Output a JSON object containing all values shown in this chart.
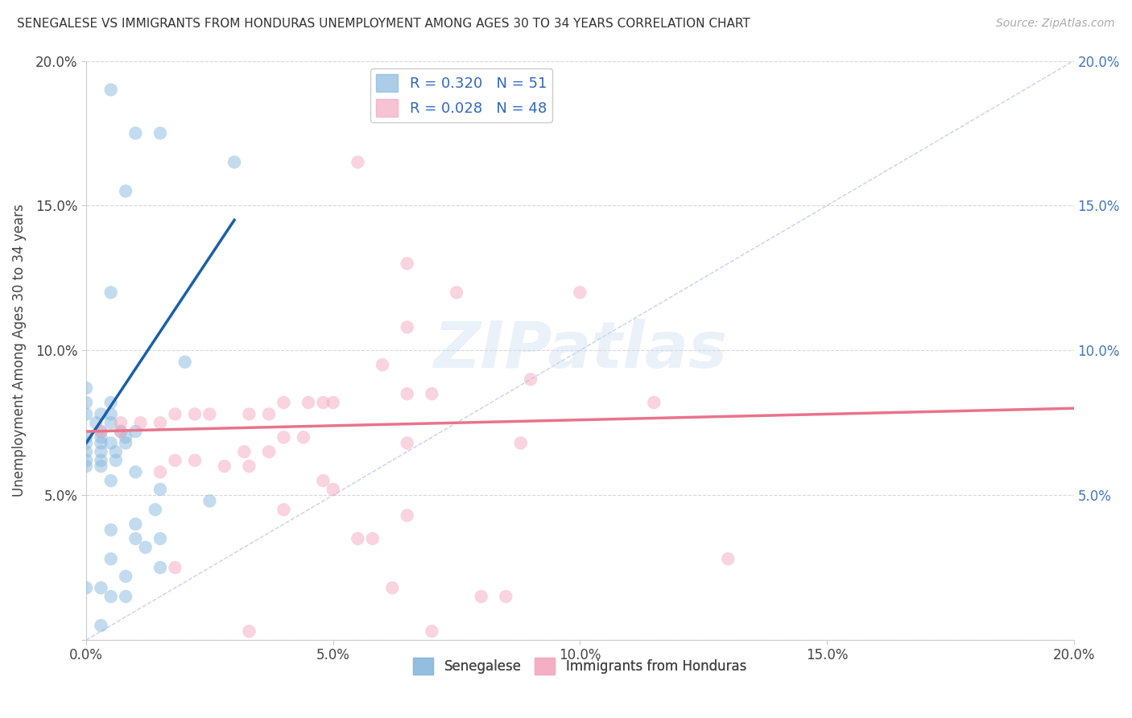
{
  "title": "SENEGALESE VS IMMIGRANTS FROM HONDURAS UNEMPLOYMENT AMONG AGES 30 TO 34 YEARS CORRELATION CHART",
  "source": "Source: ZipAtlas.com",
  "ylabel": "Unemployment Among Ages 30 to 34 years",
  "xlabel_blue": "Senegalese",
  "xlabel_pink": "Immigrants from Honduras",
  "xlim": [
    0.0,
    0.2
  ],
  "ylim": [
    0.0,
    0.2
  ],
  "xticks": [
    0.0,
    0.05,
    0.1,
    0.15,
    0.2
  ],
  "yticks": [
    0.0,
    0.05,
    0.1,
    0.15,
    0.2
  ],
  "xtick_labels": [
    "0.0%",
    "5.0%",
    "10.0%",
    "15.0%",
    "20.0%"
  ],
  "ytick_labels": [
    "",
    "5.0%",
    "10.0%",
    "15.0%",
    "20.0%"
  ],
  "R_blue": 0.32,
  "N_blue": 51,
  "R_pink": 0.028,
  "N_pink": 48,
  "blue_color": "#89b8de",
  "pink_color": "#f4a8bf",
  "line_blue": "#1a5fa8",
  "line_pink": "#e8748a",
  "diag_color": "#b0bce8",
  "blue_scatter": [
    [
      0.005,
      0.19
    ],
    [
      0.01,
      0.175
    ],
    [
      0.015,
      0.175
    ],
    [
      0.03,
      0.165
    ],
    [
      0.008,
      0.155
    ],
    [
      0.005,
      0.12
    ],
    [
      0.02,
      0.096
    ],
    [
      0.0,
      0.087
    ],
    [
      0.0,
      0.082
    ],
    [
      0.005,
      0.082
    ],
    [
      0.0,
      0.078
    ],
    [
      0.003,
      0.078
    ],
    [
      0.005,
      0.078
    ],
    [
      0.002,
      0.075
    ],
    [
      0.005,
      0.075
    ],
    [
      0.003,
      0.072
    ],
    [
      0.007,
      0.072
    ],
    [
      0.01,
      0.072
    ],
    [
      0.0,
      0.07
    ],
    [
      0.003,
      0.07
    ],
    [
      0.008,
      0.07
    ],
    [
      0.0,
      0.068
    ],
    [
      0.003,
      0.068
    ],
    [
      0.005,
      0.068
    ],
    [
      0.008,
      0.068
    ],
    [
      0.0,
      0.065
    ],
    [
      0.003,
      0.065
    ],
    [
      0.006,
      0.065
    ],
    [
      0.0,
      0.062
    ],
    [
      0.003,
      0.062
    ],
    [
      0.006,
      0.062
    ],
    [
      0.0,
      0.06
    ],
    [
      0.003,
      0.06
    ],
    [
      0.01,
      0.058
    ],
    [
      0.005,
      0.055
    ],
    [
      0.015,
      0.052
    ],
    [
      0.025,
      0.048
    ],
    [
      0.014,
      0.045
    ],
    [
      0.01,
      0.04
    ],
    [
      0.005,
      0.038
    ],
    [
      0.01,
      0.035
    ],
    [
      0.015,
      0.035
    ],
    [
      0.012,
      0.032
    ],
    [
      0.005,
      0.028
    ],
    [
      0.015,
      0.025
    ],
    [
      0.008,
      0.022
    ],
    [
      0.0,
      0.018
    ],
    [
      0.003,
      0.018
    ],
    [
      0.005,
      0.015
    ],
    [
      0.008,
      0.015
    ],
    [
      0.003,
      0.005
    ]
  ],
  "pink_scatter": [
    [
      0.055,
      0.165
    ],
    [
      0.065,
      0.13
    ],
    [
      0.075,
      0.12
    ],
    [
      0.1,
      0.12
    ],
    [
      0.065,
      0.108
    ],
    [
      0.06,
      0.095
    ],
    [
      0.09,
      0.09
    ],
    [
      0.065,
      0.085
    ],
    [
      0.07,
      0.085
    ],
    [
      0.04,
      0.082
    ],
    [
      0.045,
      0.082
    ],
    [
      0.048,
      0.082
    ],
    [
      0.05,
      0.082
    ],
    [
      0.115,
      0.082
    ],
    [
      0.018,
      0.078
    ],
    [
      0.022,
      0.078
    ],
    [
      0.025,
      0.078
    ],
    [
      0.033,
      0.078
    ],
    [
      0.037,
      0.078
    ],
    [
      0.007,
      0.075
    ],
    [
      0.011,
      0.075
    ],
    [
      0.015,
      0.075
    ],
    [
      0.003,
      0.072
    ],
    [
      0.007,
      0.072
    ],
    [
      0.04,
      0.07
    ],
    [
      0.044,
      0.07
    ],
    [
      0.065,
      0.068
    ],
    [
      0.088,
      0.068
    ],
    [
      0.032,
      0.065
    ],
    [
      0.037,
      0.065
    ],
    [
      0.018,
      0.062
    ],
    [
      0.022,
      0.062
    ],
    [
      0.028,
      0.06
    ],
    [
      0.033,
      0.06
    ],
    [
      0.015,
      0.058
    ],
    [
      0.048,
      0.055
    ],
    [
      0.05,
      0.052
    ],
    [
      0.04,
      0.045
    ],
    [
      0.065,
      0.043
    ],
    [
      0.055,
      0.035
    ],
    [
      0.058,
      0.035
    ],
    [
      0.018,
      0.025
    ],
    [
      0.062,
      0.018
    ],
    [
      0.13,
      0.028
    ],
    [
      0.08,
      0.015
    ],
    [
      0.085,
      0.015
    ],
    [
      0.033,
      0.003
    ],
    [
      0.07,
      0.003
    ]
  ],
  "blue_line_x": [
    0.0,
    0.03
  ],
  "blue_line_y": [
    0.068,
    0.145
  ],
  "pink_line_x": [
    0.0,
    0.2
  ],
  "pink_line_y": [
    0.072,
    0.08
  ],
  "watermark": "ZIPatlas",
  "grid_color": "#d8d8d8",
  "background_color": "#ffffff"
}
